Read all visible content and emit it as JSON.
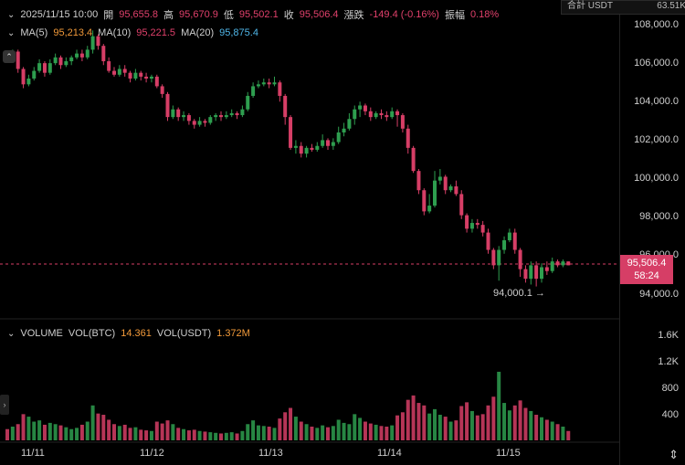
{
  "header": {
    "date": "2025/11/15 10:00",
    "open_label": "開",
    "open": "95,655.8",
    "high_label": "高",
    "high": "95,670.9",
    "low_label": "低",
    "low": "95,502.1",
    "close_label": "收",
    "close": "95,506.4",
    "change_label": "漲跌",
    "change": "-149.4 (-0.16%)",
    "amp_label": "振幅",
    "amp": "0.18%"
  },
  "ma": {
    "ma5_label": "MA(5)",
    "ma5": "95,213.4",
    "ma10_label": "MA(10)",
    "ma10": "95,221.5",
    "ma20_label": "MA(20)",
    "ma20": "95,875.4"
  },
  "volume": {
    "label": "VOLUME",
    "btc_label": "VOL(BTC)",
    "btc": "14.361",
    "usdt_label": "VOL(USDT)",
    "usdt": "1.372M"
  },
  "tooltip": {
    "left": "合計 USDT",
    "right": "63.51K"
  },
  "price_axis": [
    "108,000.0",
    "106,000.0",
    "104,000.0",
    "102,000.0",
    "100,000.0",
    "98,000.0",
    "96,000.0",
    "94,000.0"
  ],
  "vol_axis": [
    "1.6K",
    "1.2K",
    "800",
    "400"
  ],
  "x_axis": [
    "11/11",
    "11/12",
    "11/13",
    "11/14",
    "11/15"
  ],
  "last_price": {
    "price": "95,506.4",
    "countdown": "58:24"
  },
  "min_marker": "94,000.1 →",
  "side_button": "›",
  "corner_button": "⌃",
  "colors": {
    "up": "#2e9e4f",
    "down": "#d63e66",
    "bg": "#000000"
  },
  "chart_data": {
    "type": "candlestick",
    "price_range": [
      93500,
      108500
    ],
    "volume_range": [
      0,
      1700
    ],
    "candles": [
      [
        106500,
        106400,
        106600,
        106100,
        180
      ],
      [
        106400,
        106600,
        106700,
        106300,
        220
      ],
      [
        106600,
        105700,
        106700,
        105500,
        260
      ],
      [
        105700,
        104900,
        105800,
        104700,
        420
      ],
      [
        104900,
        105200,
        105400,
        104800,
        380
      ],
      [
        105200,
        105600,
        105800,
        105100,
        300
      ],
      [
        105600,
        106000,
        106200,
        105500,
        320
      ],
      [
        106000,
        105500,
        106100,
        105300,
        250
      ],
      [
        105500,
        106000,
        106200,
        105400,
        280
      ],
      [
        106000,
        106300,
        106500,
        105900,
        260
      ],
      [
        106300,
        105900,
        106400,
        105700,
        240
      ],
      [
        105900,
        106100,
        106300,
        105800,
        210
      ],
      [
        106100,
        106300,
        106400,
        105900,
        180
      ],
      [
        106300,
        106500,
        106700,
        106200,
        200
      ],
      [
        106500,
        106300,
        106700,
        106100,
        250
      ],
      [
        106300,
        106700,
        106900,
        106200,
        300
      ],
      [
        106700,
        107400,
        107700,
        106500,
        560
      ],
      [
        107400,
        106900,
        107500,
        106700,
        430
      ],
      [
        106900,
        106100,
        107000,
        105900,
        410
      ],
      [
        106100,
        105600,
        106300,
        105500,
        330
      ],
      [
        105600,
        105400,
        105800,
        105300,
        260
      ],
      [
        105400,
        105700,
        105900,
        105300,
        230
      ],
      [
        105700,
        105500,
        105900,
        105300,
        250
      ],
      [
        105500,
        105200,
        105600,
        105000,
        200
      ],
      [
        105200,
        105500,
        105700,
        105100,
        210
      ],
      [
        105500,
        105300,
        105600,
        105100,
        170
      ],
      [
        105300,
        105200,
        105500,
        105000,
        160
      ],
      [
        105200,
        105300,
        105400,
        105000,
        150
      ],
      [
        105300,
        104800,
        105400,
        104700,
        300
      ],
      [
        104800,
        104400,
        104900,
        104200,
        270
      ],
      [
        104400,
        103200,
        104500,
        103000,
        320
      ],
      [
        103200,
        103600,
        103800,
        103100,
        260
      ],
      [
        103600,
        103200,
        103700,
        103000,
        200
      ],
      [
        103200,
        103300,
        103500,
        103000,
        180
      ],
      [
        103300,
        103000,
        103400,
        102800,
        160
      ],
      [
        103000,
        102800,
        103100,
        102600,
        170
      ],
      [
        102800,
        103000,
        103200,
        102700,
        150
      ],
      [
        103000,
        102900,
        103100,
        102700,
        140
      ],
      [
        102900,
        103200,
        103300,
        102800,
        130
      ],
      [
        103200,
        103300,
        103400,
        103000,
        120
      ],
      [
        103300,
        103200,
        103500,
        103000,
        110
      ],
      [
        103200,
        103300,
        103500,
        103100,
        120
      ],
      [
        103300,
        103400,
        103600,
        103200,
        130
      ],
      [
        103400,
        103300,
        103500,
        103100,
        110
      ],
      [
        103300,
        103600,
        103800,
        103200,
        150
      ],
      [
        103600,
        104300,
        104500,
        103500,
        260
      ],
      [
        104300,
        104800,
        105000,
        104200,
        320
      ],
      [
        104800,
        104900,
        105100,
        104700,
        240
      ],
      [
        104900,
        105000,
        105200,
        104800,
        230
      ],
      [
        105000,
        104900,
        105200,
        104700,
        220
      ],
      [
        104900,
        105000,
        105300,
        104800,
        200
      ],
      [
        105000,
        104300,
        105100,
        104000,
        350
      ],
      [
        104300,
        103200,
        104400,
        102800,
        450
      ],
      [
        103200,
        101600,
        103300,
        101500,
        520
      ],
      [
        101600,
        101700,
        102000,
        101300,
        380
      ],
      [
        101700,
        101300,
        101900,
        101100,
        300
      ],
      [
        101300,
        101600,
        101700,
        101100,
        260
      ],
      [
        101600,
        101500,
        101800,
        101400,
        220
      ],
      [
        101500,
        101700,
        101900,
        101400,
        200
      ],
      [
        101700,
        102000,
        102300,
        101600,
        240
      ],
      [
        102000,
        101700,
        102100,
        101500,
        210
      ],
      [
        101700,
        101900,
        102100,
        101500,
        230
      ],
      [
        101900,
        102400,
        102700,
        101800,
        330
      ],
      [
        102400,
        102600,
        102900,
        102200,
        280
      ],
      [
        102600,
        103100,
        103400,
        102500,
        260
      ],
      [
        103100,
        103600,
        103800,
        102800,
        420
      ],
      [
        103600,
        103800,
        104000,
        103200,
        360
      ],
      [
        103800,
        103500,
        103900,
        103300,
        300
      ],
      [
        103500,
        103200,
        103700,
        103000,
        270
      ],
      [
        103200,
        103400,
        103500,
        103100,
        250
      ],
      [
        103400,
        103300,
        103600,
        103100,
        230
      ],
      [
        103300,
        103200,
        103500,
        103000,
        220
      ],
      [
        103200,
        103500,
        103700,
        103100,
        240
      ],
      [
        103500,
        103300,
        103600,
        102700,
        400
      ],
      [
        103300,
        102600,
        103400,
        102400,
        450
      ],
      [
        102600,
        101600,
        102800,
        101300,
        650
      ],
      [
        101600,
        100400,
        101700,
        100300,
        720
      ],
      [
        100400,
        99400,
        100500,
        99200,
        600
      ],
      [
        99400,
        98300,
        99500,
        98100,
        560
      ],
      [
        98300,
        98600,
        99200,
        98200,
        430
      ],
      [
        98600,
        99900,
        100400,
        98500,
        500
      ],
      [
        99900,
        100100,
        100500,
        99700,
        410
      ],
      [
        100100,
        99400,
        100200,
        99200,
        380
      ],
      [
        99400,
        99600,
        99700,
        99300,
        300
      ],
      [
        99600,
        99200,
        99900,
        99100,
        320
      ],
      [
        99200,
        98100,
        99400,
        97900,
        550
      ],
      [
        98100,
        97400,
        98200,
        97200,
        610
      ],
      [
        97400,
        97700,
        97900,
        97200,
        470
      ],
      [
        97700,
        97600,
        97900,
        97400,
        400
      ],
      [
        97600,
        97200,
        97800,
        97000,
        420
      ],
      [
        97200,
        96300,
        97400,
        96100,
        560
      ],
      [
        96300,
        95500,
        96400,
        95300,
        700
      ],
      [
        95500,
        96300,
        96500,
        94700,
        1100
      ],
      [
        96300,
        96800,
        97000,
        96100,
        600
      ],
      [
        96800,
        97200,
        97400,
        96700,
        480
      ],
      [
        97200,
        96300,
        97400,
        96100,
        560
      ],
      [
        96300,
        95300,
        96400,
        94900,
        640
      ],
      [
        95300,
        94800,
        95500,
        94600,
        520
      ],
      [
        94800,
        95500,
        95700,
        94500,
        470
      ],
      [
        95500,
        94800,
        95700,
        94400,
        410
      ],
      [
        94800,
        95400,
        95600,
        94600,
        370
      ],
      [
        95400,
        95200,
        95700,
        95000,
        330
      ],
      [
        95200,
        95700,
        95900,
        95100,
        300
      ],
      [
        95700,
        95500,
        95800,
        95400,
        260
      ],
      [
        95500,
        95700,
        95800,
        95400,
        220
      ],
      [
        95700,
        95500,
        95700,
        95500,
        150
      ]
    ]
  }
}
